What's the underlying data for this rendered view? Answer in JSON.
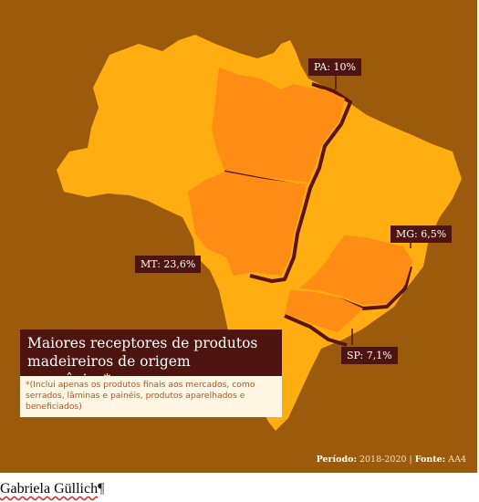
{
  "map": {
    "colors": {
      "background": "#9c5a0d",
      "country_fill": "#ffad10",
      "highlight_fill": "#ff8c14",
      "border_shadow": "#5b1414",
      "label_bg": "#4e1410",
      "note_bg": "#fff6e4"
    },
    "labels": {
      "pa": "PA: 10%",
      "mt": "MT: 23,6%",
      "mg": "MG: 6,5%",
      "sp": "SP: 7,1%"
    },
    "title": "Maiores receptores de produtos madeireiros de origem amazônica*",
    "note": "*(Inclui apenas os produtos finais aos mercados, como serrados, lâminas e painéis, produtos aparelhados e beneficiados)",
    "source": {
      "period_label": "Período:",
      "period_value": " 2018-2020 | ",
      "source_label": "Fonte:",
      "source_value": " AA4"
    }
  },
  "caption": {
    "name": "Gabriela Güllich",
    "mark": "¶"
  }
}
